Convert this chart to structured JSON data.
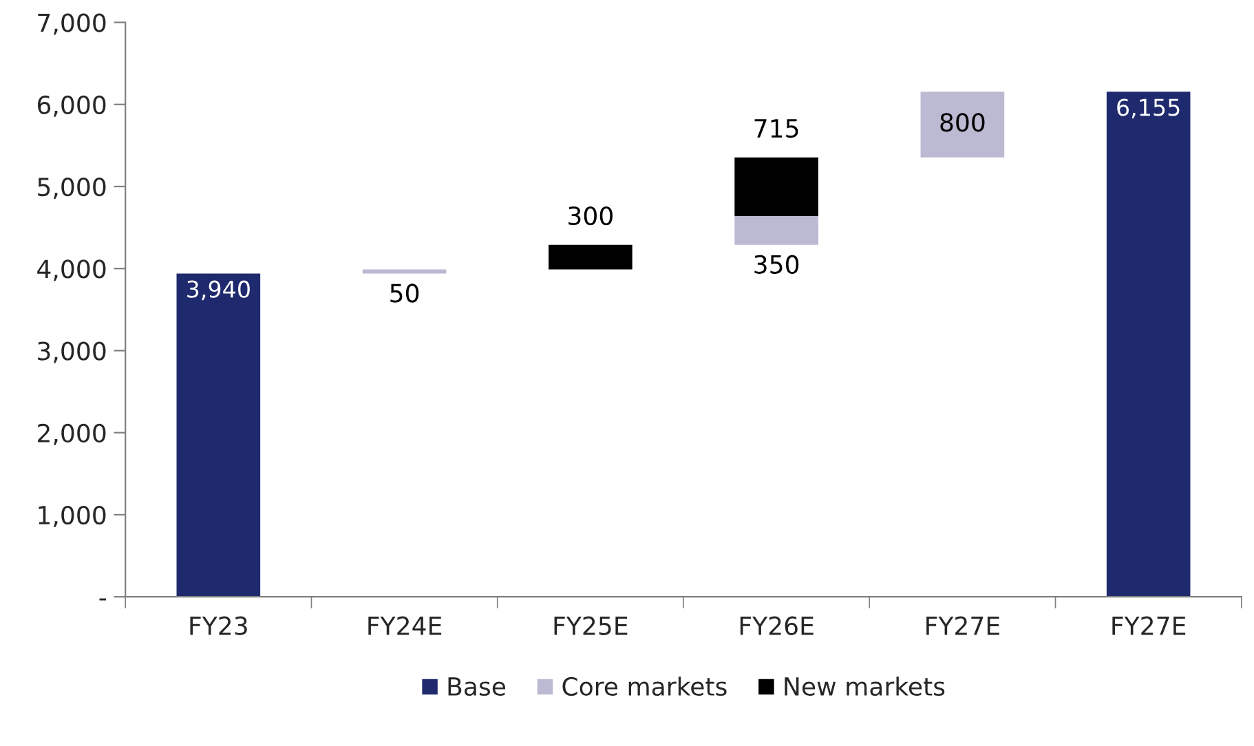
{
  "chart_data": {
    "type": "bar",
    "categories": [
      "FY23",
      "FY24E",
      "FY25E",
      "FY26E",
      "FY27E",
      "FY27E"
    ],
    "series": [
      {
        "name": "Base",
        "color": "#1f2a6e",
        "values": [
          3940,
          null,
          null,
          null,
          null,
          6155
        ],
        "base": [
          0,
          null,
          null,
          null,
          null,
          0
        ],
        "value_labels": [
          "3,940",
          null,
          null,
          null,
          null,
          "6,155"
        ]
      },
      {
        "name": "Core markets",
        "color": "#bcb9d3",
        "values": [
          null,
          50,
          null,
          350,
          800,
          null
        ],
        "base": [
          null,
          3940,
          null,
          4290,
          5355,
          null
        ],
        "value_labels": [
          null,
          "50",
          null,
          "350",
          "800",
          null
        ]
      },
      {
        "name": "New markets",
        "color": "#000000",
        "values": [
          null,
          null,
          300,
          715,
          null,
          null
        ],
        "base": [
          null,
          null,
          3990,
          4640,
          null,
          null
        ],
        "value_labels": [
          null,
          null,
          "300",
          "715",
          null,
          null
        ]
      }
    ],
    "ylim": [
      0,
      7000
    ],
    "yticks": [
      {
        "value": 0,
        "label": "-"
      },
      {
        "value": 1000,
        "label": "1,000"
      },
      {
        "value": 2000,
        "label": "2,000"
      },
      {
        "value": 3000,
        "label": "3,000"
      },
      {
        "value": 4000,
        "label": "4,000"
      },
      {
        "value": 5000,
        "label": "5,000"
      },
      {
        "value": 6000,
        "label": "6,000"
      },
      {
        "value": 7000,
        "label": "7,000"
      }
    ],
    "grid": false,
    "legend": "bottom"
  }
}
